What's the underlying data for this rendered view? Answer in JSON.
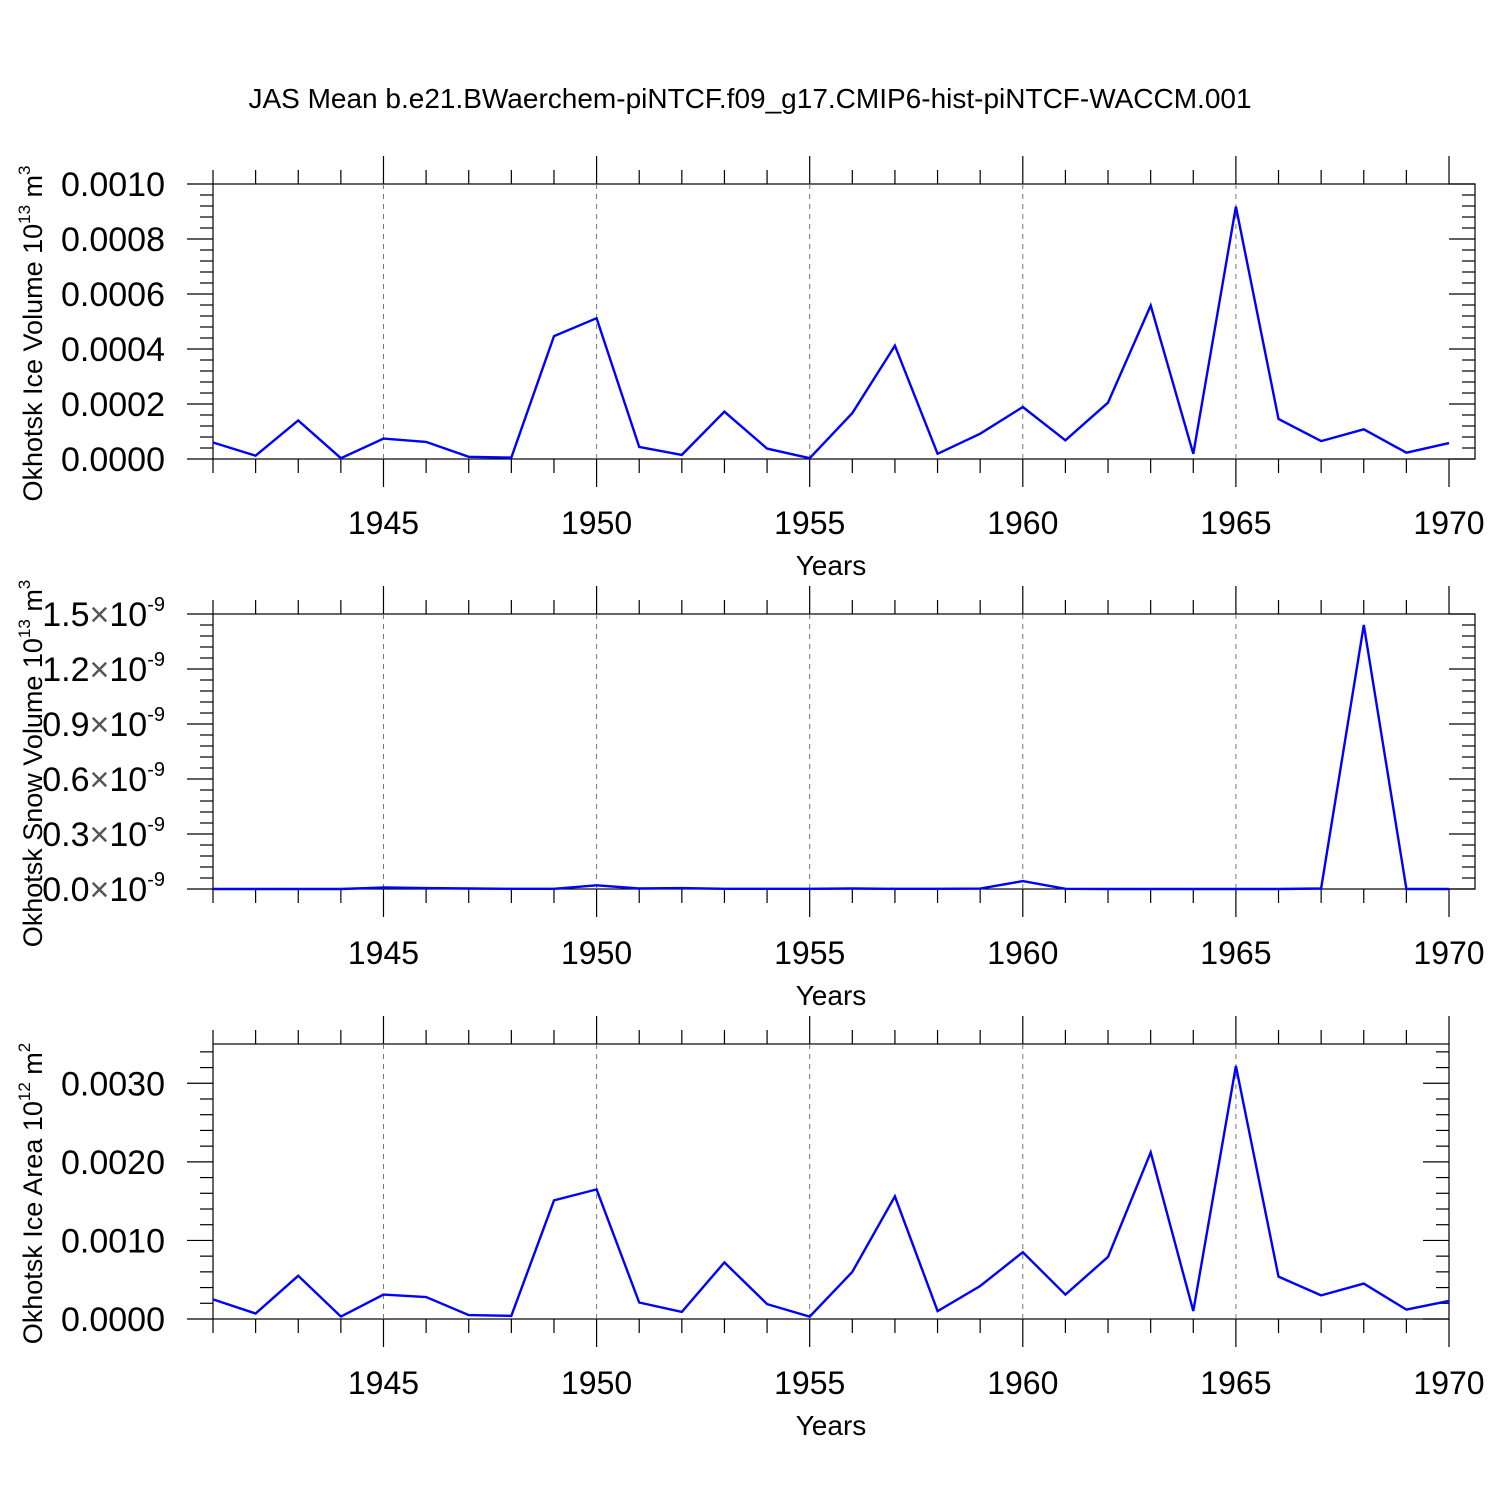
{
  "title": "JAS Mean b.e21.BWaerchem-piNTCF.f09_g17.CMIP6-hist-piNTCF-WACCM.001",
  "chart_data": [
    {
      "type": "line",
      "ylabel": "Okhotsk Ice Volume 10",
      "ylabel_exp": "13",
      "ylabel_unit": " m",
      "ylabel_unit_exp": "3",
      "xlabel": "Years",
      "x_ticks": [
        "1945",
        "1950",
        "1955",
        "1960",
        "1965",
        "1970"
      ],
      "y_ticks": [
        "0.0000",
        "0.0002",
        "0.0004",
        "0.0006",
        "0.0008",
        "0.0010"
      ],
      "xlim": [
        1941,
        1970
      ],
      "ylim": [
        0,
        0.001
      ],
      "color": "#0000ff",
      "x": [
        1941,
        1942,
        1943,
        1944,
        1945,
        1946,
        1947,
        1948,
        1949,
        1950,
        1951,
        1952,
        1953,
        1954,
        1955,
        1956,
        1957,
        1958,
        1959,
        1960,
        1961,
        1962,
        1963,
        1964,
        1965,
        1966,
        1967,
        1968,
        1969,
        1970
      ],
      "values": [
        6e-05,
        1.2e-05,
        0.00014,
        3e-06,
        7.4e-05,
        6.2e-05,
        8e-06,
        5e-06,
        0.000447,
        0.000512,
        4.4e-05,
        1.5e-05,
        0.000172,
        3.8e-05,
        3e-06,
        0.000167,
        0.000412,
        1.9e-05,
        9.2e-05,
        0.000189,
        6.8e-05,
        0.000205,
        0.000558,
        1.9e-05,
        0.000918,
        0.000146,
        6.5e-05,
        0.000108,
        2.3e-05,
        5.8e-05
      ]
    },
    {
      "type": "line",
      "ylabel": "Okhotsk Snow Volume 10",
      "ylabel_exp": "13",
      "ylabel_unit": " m",
      "ylabel_unit_exp": "3",
      "xlabel": "Years",
      "x_ticks": [
        "1945",
        "1950",
        "1955",
        "1960",
        "1965",
        "1970"
      ],
      "y_tick_mantissas": [
        "0.0",
        "0.3",
        "0.6",
        "0.9",
        "1.2",
        "1.5"
      ],
      "y_tick_base": "10",
      "y_tick_exp": "-9",
      "xlim": [
        1941,
        1970
      ],
      "ylim": [
        0,
        1.5e-09
      ],
      "color": "#0000ff",
      "x": [
        1941,
        1942,
        1943,
        1944,
        1945,
        1946,
        1947,
        1948,
        1949,
        1950,
        1951,
        1952,
        1953,
        1954,
        1955,
        1956,
        1957,
        1958,
        1959,
        1960,
        1961,
        1962,
        1963,
        1964,
        1965,
        1966,
        1967,
        1968,
        1969,
        1970
      ],
      "values": [
        0,
        0,
        0,
        0,
        8e-12,
        5e-12,
        3e-12,
        1e-12,
        1e-12,
        2e-11,
        3e-12,
        5e-12,
        1e-12,
        1e-12,
        1e-12,
        3e-12,
        1e-12,
        1e-12,
        2e-12,
        4.3e-11,
        1e-12,
        0,
        0,
        0,
        0,
        0,
        3e-12,
        1.44e-09,
        0,
        0
      ]
    },
    {
      "type": "line",
      "ylabel": "Okhotsk Ice Area 10",
      "ylabel_exp": "12",
      "ylabel_unit": " m",
      "ylabel_unit_exp": "2",
      "xlabel": "Years",
      "x_ticks": [
        "1945",
        "1950",
        "1955",
        "1960",
        "1965",
        "1970"
      ],
      "y_ticks": [
        "0.0000",
        "0.0010",
        "0.0020",
        "0.0030"
      ],
      "xlim": [
        1941,
        1970
      ],
      "ylim": [
        0,
        0.0035
      ],
      "color": "#0000ff",
      "x": [
        1941,
        1942,
        1943,
        1944,
        1945,
        1946,
        1947,
        1948,
        1949,
        1950,
        1951,
        1952,
        1953,
        1954,
        1955,
        1956,
        1957,
        1958,
        1959,
        1960,
        1961,
        1962,
        1963,
        1964,
        1965,
        1966,
        1967,
        1968,
        1969,
        1970
      ],
      "values": [
        0.00025,
        7e-05,
        0.00055,
        3e-05,
        0.00031,
        0.00028,
        5e-05,
        4e-05,
        0.00151,
        0.00165,
        0.00021,
        9e-05,
        0.00072,
        0.00019,
        3e-05,
        0.0006,
        0.00156,
        0.0001,
        0.00042,
        0.00085,
        0.00031,
        0.00079,
        0.00212,
        0.0001,
        0.00322,
        0.00054,
        0.0003,
        0.00045,
        0.00012,
        0.00023
      ]
    }
  ]
}
